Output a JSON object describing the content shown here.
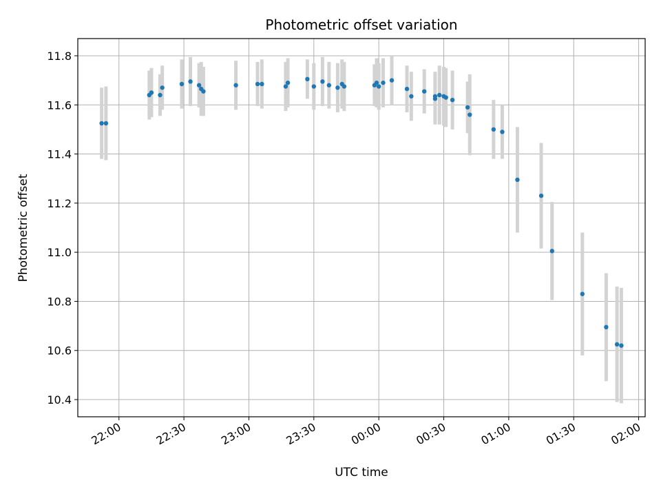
{
  "chart_data": {
    "type": "scatter",
    "title": "Photometric offset variation",
    "xlabel": "UTC time",
    "ylabel": "Photometric offset",
    "x_tick_labels": [
      "22:00",
      "22:30",
      "23:00",
      "23:30",
      "00:00",
      "00:30",
      "01:00",
      "01:30",
      "02:00"
    ],
    "y_tick_labels": [
      "10.4",
      "10.6",
      "10.8",
      "11.0",
      "11.2",
      "11.4",
      "11.6",
      "11.8"
    ],
    "y_ticks": [
      10.4,
      10.6,
      10.8,
      11.0,
      11.2,
      11.4,
      11.6,
      11.8
    ],
    "xlim": [
      "21:41",
      "02:03"
    ],
    "ylim": [
      10.33,
      11.87
    ],
    "grid": true,
    "colors": {
      "points": "#1f77b4",
      "errorbars": "#d3d3d3",
      "grid": "#b0b0b0"
    },
    "series": [
      {
        "x": [
          "21:52",
          "21:54",
          "22:14",
          "22:15",
          "22:19",
          "22:20",
          "22:29",
          "22:33",
          "22:37",
          "22:38",
          "22:39",
          "22:54",
          "23:04",
          "23:06",
          "23:17",
          "23:18",
          "23:27",
          "23:30",
          "23:34",
          "23:37",
          "23:41",
          "23:43",
          "23:44",
          "23:58",
          "23:59",
          "24:00",
          "24:02",
          "24:06",
          "24:13",
          "24:15",
          "24:21",
          "24:26",
          "24:26",
          "24:28",
          "24:30",
          "24:31",
          "24:34",
          "24:41",
          "24:42",
          "24:53",
          "24:57",
          "25:04",
          "25:15",
          "25:20",
          "25:34",
          "25:45",
          "25:50",
          "25:52"
        ],
        "y": [
          11.525,
          11.525,
          11.64,
          11.65,
          11.64,
          11.67,
          11.685,
          11.695,
          11.68,
          11.665,
          11.655,
          11.68,
          11.685,
          11.685,
          11.675,
          11.69,
          11.705,
          11.675,
          11.695,
          11.68,
          11.67,
          11.685,
          11.675,
          11.68,
          11.69,
          11.675,
          11.69,
          11.7,
          11.665,
          11.635,
          11.655,
          11.625,
          11.635,
          11.64,
          11.635,
          11.63,
          11.62,
          11.59,
          11.56,
          11.5,
          11.49,
          11.295,
          11.23,
          11.005,
          10.83,
          10.695,
          10.625,
          10.62
        ],
        "err": [
          0.145,
          0.15,
          0.1,
          0.1,
          0.085,
          0.09,
          0.1,
          0.1,
          0.09,
          0.11,
          0.1,
          0.1,
          0.09,
          0.1,
          0.1,
          0.1,
          0.08,
          0.095,
          0.1,
          0.095,
          0.1,
          0.1,
          0.1,
          0.085,
          0.1,
          0.095,
          0.1,
          0.1,
          0.095,
          0.1,
          0.09,
          0.105,
          0.1,
          0.12,
          0.12,
          0.12,
          0.12,
          0.105,
          0.165,
          0.12,
          0.11,
          0.215,
          0.215,
          0.2,
          0.25,
          0.22,
          0.235,
          0.235
        ]
      }
    ]
  }
}
